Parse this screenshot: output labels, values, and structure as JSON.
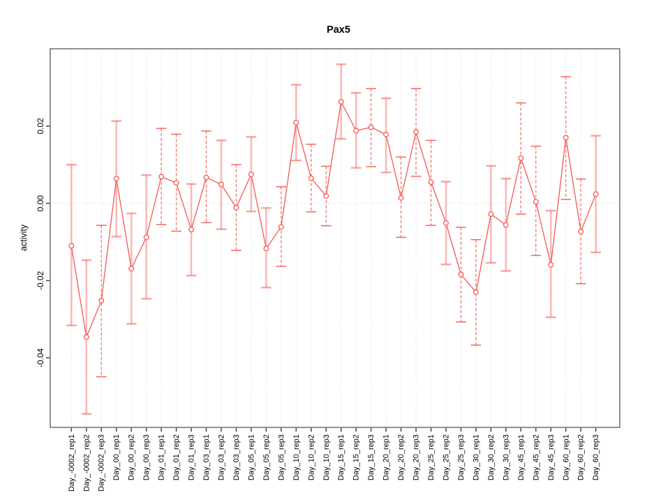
{
  "chart_data": {
    "type": "line",
    "title": "Pax5",
    "xlabel": "",
    "ylabel": "activity",
    "ylim": [
      -0.058,
      0.04
    ],
    "yticks": [
      0.02,
      0.0,
      -0.02,
      -0.04
    ],
    "ytick_labels": [
      "0.02",
      "0.00",
      "-0.02",
      "-0.04"
    ],
    "grid": "vertical-dotted-per-category-plus-dotted-zero-line",
    "legend": "none",
    "categories": [
      "Day_-0002_rep1",
      "Day_-0002_rep2",
      "Day_-0002_rep3",
      "Day_00_rep1",
      "Day_00_rep2",
      "Day_00_rep3",
      "Day_01_rep1",
      "Day_01_rep2",
      "Day_01_rep3",
      "Day_03_rep1",
      "Day_03_rep2",
      "Day_03_rep3",
      "Day_05_rep1",
      "Day_05_rep2",
      "Day_05_rep3",
      "Day_10_rep1",
      "Day_10_rep2",
      "Day_10_rep3",
      "Day_15_rep1",
      "Day_15_rep2",
      "Day_15_rep3",
      "Day_20_rep1",
      "Day_20_rep2",
      "Day_20_rep3",
      "Day_25_rep1",
      "Day_25_rep2",
      "Day_25_rep3",
      "Day_30_rep1",
      "Day_30_rep2",
      "Day_30_rep3",
      "Day_45_rep1",
      "Day_45_rep2",
      "Day_45_rep3",
      "Day_60_rep1",
      "Day_60_rep2",
      "Day_60_rep3"
    ],
    "series": [
      {
        "name": "activity",
        "marker": "open-circle",
        "values": [
          -0.011,
          -0.0346,
          -0.0252,
          0.0064,
          -0.0169,
          -0.0088,
          0.0069,
          0.0053,
          -0.0068,
          0.0067,
          0.0049,
          -0.0011,
          0.0075,
          -0.0117,
          -0.0061,
          0.0209,
          0.0065,
          0.0019,
          0.0263,
          0.0188,
          0.0197,
          0.0178,
          0.0014,
          0.0185,
          0.0055,
          -0.0051,
          -0.0184,
          -0.023,
          -0.0028,
          -0.0056,
          0.0117,
          0.0004,
          -0.0159,
          0.017,
          -0.0073,
          0.0024
        ],
        "upper": [
          0.01,
          -0.0147,
          -0.0057,
          0.0213,
          -0.0026,
          0.0073,
          0.0194,
          0.0179,
          0.005,
          0.0187,
          0.0163,
          0.01,
          0.0172,
          -0.0012,
          0.0043,
          0.0307,
          0.0153,
          0.0096,
          0.036,
          0.0286,
          0.0297,
          0.0272,
          0.012,
          0.0297,
          0.0163,
          0.0056,
          -0.0062,
          -0.0094,
          0.0097,
          0.0064,
          0.026,
          0.0148,
          -0.0019,
          0.0328,
          0.0063,
          0.0175
        ],
        "lower": [
          -0.0316,
          -0.0545,
          -0.0449,
          -0.0086,
          -0.0312,
          -0.0247,
          -0.0055,
          -0.0072,
          -0.0187,
          -0.005,
          -0.0067,
          -0.0122,
          -0.0021,
          -0.0218,
          -0.0163,
          0.0111,
          -0.0022,
          -0.0058,
          0.0167,
          0.0092,
          0.0095,
          0.008,
          -0.0088,
          0.007,
          -0.0057,
          -0.0158,
          -0.0307,
          -0.0367,
          -0.0154,
          -0.0175,
          -0.0028,
          -0.0135,
          -0.0295,
          0.001,
          -0.0208,
          -0.0127
        ],
        "bar_styles": [
          "solid",
          "solid",
          "dashed",
          "solid",
          "solid",
          "solid",
          "dashed",
          "dashed",
          "solid",
          "dashed",
          "solid",
          "dashed",
          "solid",
          "solid",
          "dashed",
          "solid",
          "dashed",
          "dashed",
          "solid",
          "solid",
          "dashed",
          "solid",
          "dashed",
          "dashed",
          "dashed",
          "solid",
          "dashed",
          "dashed",
          "solid",
          "solid",
          "dashed",
          "dashed",
          "solid",
          "dashed",
          "dashed",
          "solid"
        ]
      }
    ],
    "colors": {
      "series": "#f65852",
      "error_bar_solid": "rgba(246,88,82,0.40)",
      "error_bar_cap_solid": "rgba(246,88,82,0.55)",
      "error_bar_dashed": "rgba(246,88,82,0.85)",
      "error_bar_cap_dashed": "rgba(246,88,82,0.92)",
      "grid": "#d7d7d7",
      "box": "#858585",
      "tick": "#404040",
      "text": "#000000"
    }
  }
}
